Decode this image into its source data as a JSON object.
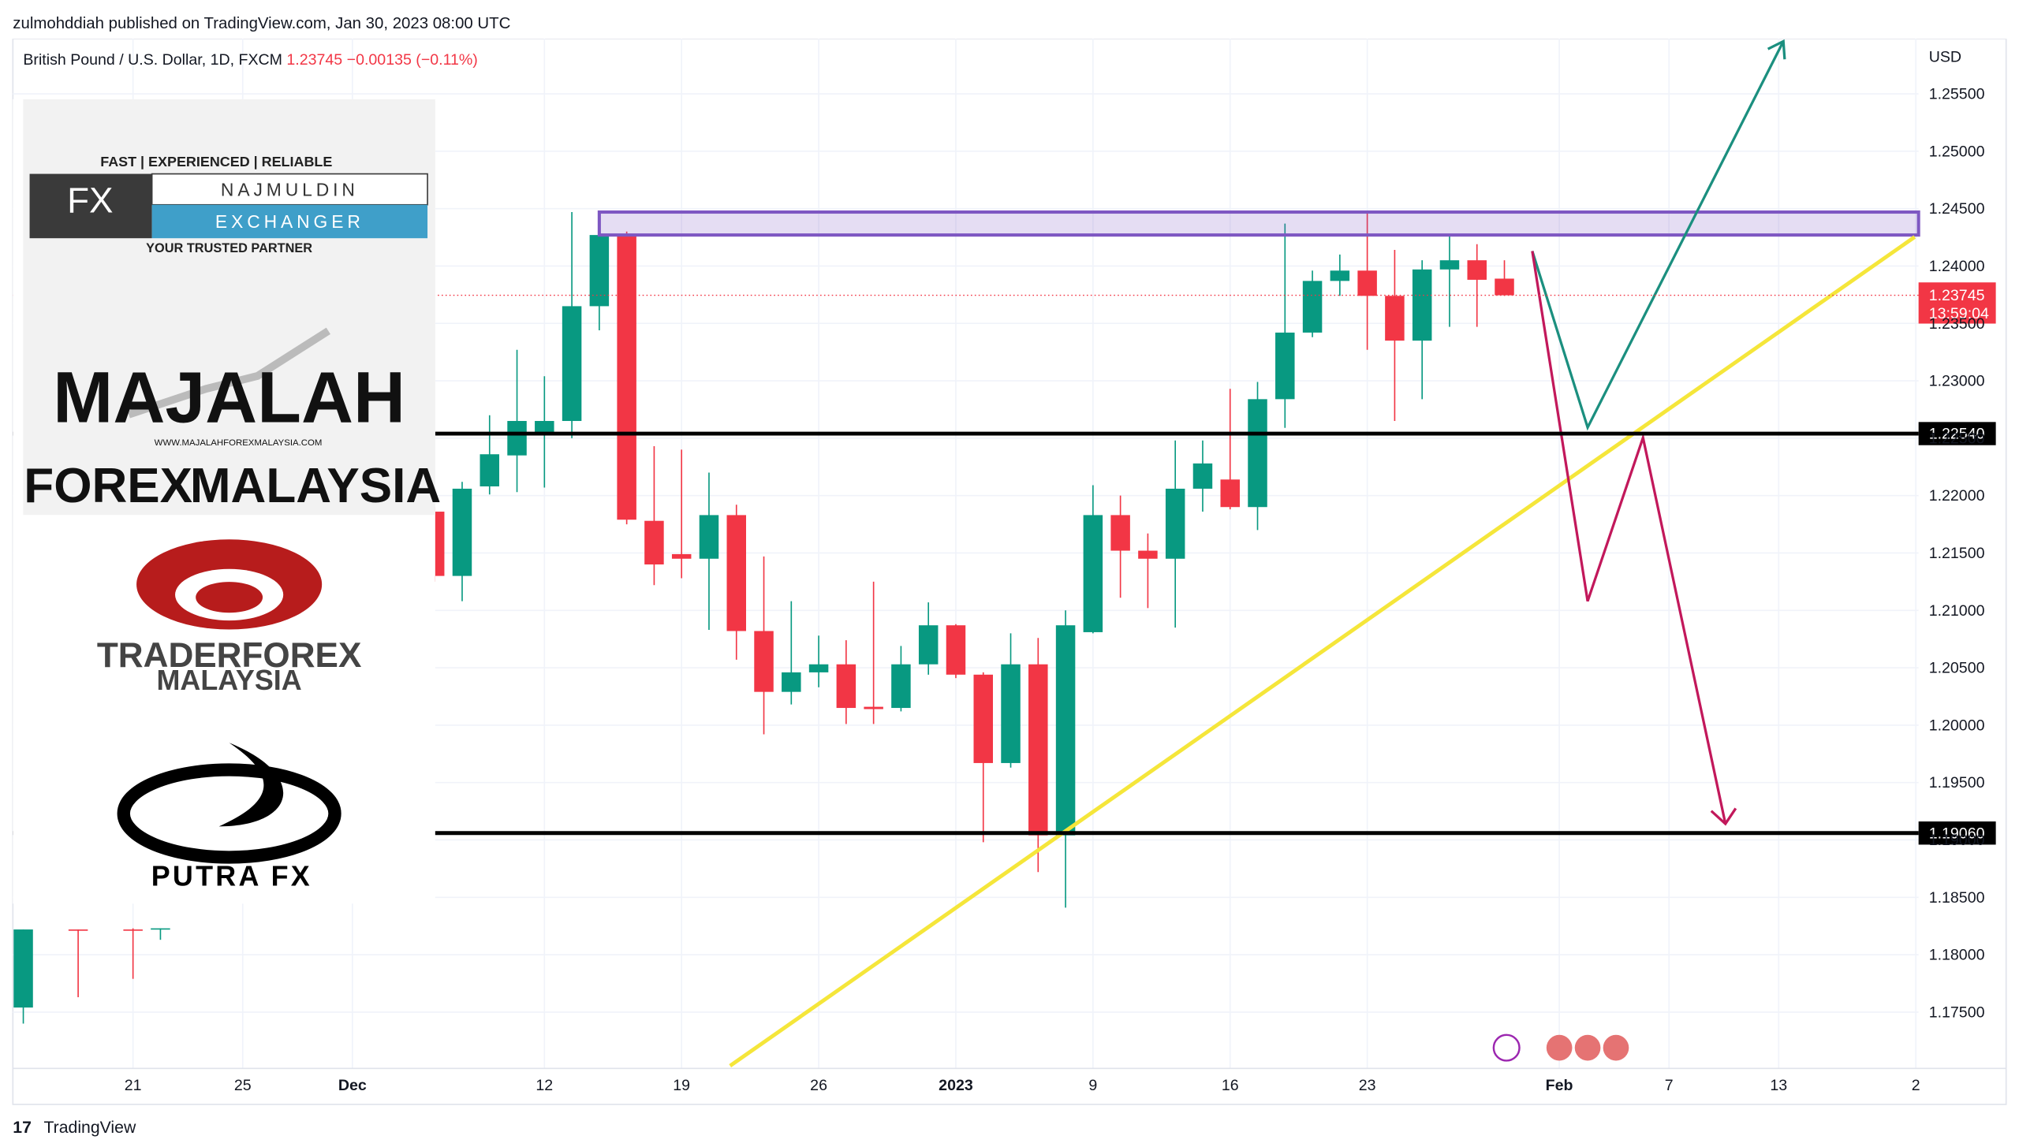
{
  "header": {
    "published": "zulmohddiah published on TradingView.com, Jan 30, 2023 08:00 UTC",
    "brand": "TradingView"
  },
  "logos": {
    "najmuldin": {
      "tagline": "FAST | EXPERIENCED | RELIABLE",
      "fx": "FX",
      "name": "NAJMULDIN",
      "sub": "EXCHANGER",
      "partner": "YOUR TRUSTED PARTNER"
    },
    "majalah": {
      "word1": "MAJALAH",
      "url": "WWW.MAJALAHFOREXMALAYSIA.COM",
      "word2": "FOREX",
      "word3": "MALAYSIA"
    },
    "trader": {
      "line1": "TRADERFOREX",
      "line2": "MALAYSIA"
    },
    "putra": {
      "name": "PUTRA FX"
    }
  },
  "chart_data": {
    "type": "candlestick",
    "title": "British Pound / U.S. Dollar, 1D, FXCM",
    "last_price": 1.23745,
    "change": "−0.00135 (−0.11%)",
    "countdown": "13:59:04",
    "currency": "USD",
    "up_color": "#089981",
    "down_color": "#f23645",
    "candles": {
      "x": [
        0,
        2,
        4,
        5,
        15,
        16,
        17,
        18,
        19,
        20,
        21,
        22,
        23,
        24,
        25,
        26,
        27,
        28,
        29,
        30,
        31,
        32,
        33,
        34,
        35,
        36,
        37,
        38,
        39,
        40,
        41,
        42,
        43,
        44,
        45,
        46,
        47,
        48,
        49,
        50,
        51,
        52,
        53,
        54
      ],
      "open": [
        1.1754,
        1.1822,
        1.1822,
        1.1822,
        1.2186,
        1.213,
        1.2208,
        1.2235,
        1.2254,
        1.2265,
        1.2365,
        1.2427,
        1.2178,
        1.2149,
        1.2145,
        1.2183,
        1.2082,
        1.2029,
        1.2046,
        1.2053,
        1.2016,
        1.2015,
        1.2053,
        1.2087,
        1.2044,
        1.1967,
        1.2053,
        1.1904,
        1.2081,
        1.2183,
        1.2152,
        1.2145,
        1.2206,
        1.2214,
        1.219,
        1.2284,
        1.2342,
        1.2387,
        1.2396,
        1.2374,
        1.2335,
        1.2397,
        1.2405,
        1.2389
      ],
      "high": [
        1.1822,
        1.1822,
        1.1823,
        1.1823,
        1.219,
        1.2212,
        1.227,
        1.2327,
        1.2304,
        1.2447,
        1.2448,
        1.243,
        1.2243,
        1.224,
        1.222,
        1.2192,
        1.2147,
        1.2108,
        1.2078,
        1.2074,
        1.2125,
        1.2069,
        1.2107,
        1.2088,
        1.2046,
        1.208,
        1.2076,
        1.21,
        1.2209,
        1.22,
        1.2167,
        1.2248,
        1.2248,
        1.2293,
        1.2299,
        1.2437,
        1.2396,
        1.241,
        1.2448,
        1.2414,
        1.2405,
        1.2428,
        1.2419,
        1.2405
      ],
      "low": [
        1.174,
        1.1763,
        1.1779,
        1.1813,
        1.2125,
        1.2108,
        1.2201,
        1.2203,
        1.2207,
        1.225,
        1.2344,
        1.2175,
        1.2122,
        1.2128,
        1.2083,
        1.2057,
        1.1992,
        1.2018,
        1.2033,
        1.2001,
        1.2001,
        1.2012,
        1.2044,
        1.2041,
        1.1898,
        1.1963,
        1.1872,
        1.1841,
        1.208,
        1.2111,
        1.2102,
        1.2085,
        1.2186,
        1.2188,
        1.217,
        1.2259,
        1.2338,
        1.2374,
        1.2327,
        1.2265,
        1.2284,
        1.2347,
        1.2347,
        1.2374
      ],
      "close": [
        1.1822,
        1.1821,
        1.1821,
        1.1823,
        1.213,
        1.2206,
        1.2236,
        1.2265,
        1.2265,
        1.2365,
        1.2427,
        1.2179,
        1.214,
        1.2145,
        1.2183,
        1.2082,
        1.2029,
        1.2046,
        1.2053,
        1.2015,
        1.2014,
        1.2053,
        1.2087,
        1.2044,
        1.1967,
        1.2053,
        1.1904,
        1.2087,
        1.2183,
        1.2152,
        1.2145,
        1.2206,
        1.2228,
        1.219,
        1.2284,
        1.2342,
        1.2387,
        1.2396,
        1.2374,
        1.2335,
        1.2397,
        1.2405,
        1.2388,
        1.23745
      ]
    },
    "levels": [
      {
        "value": 1.2254,
        "label": "1.22540"
      },
      {
        "value": 1.1906,
        "label": "1.19060"
      }
    ],
    "zone": {
      "x": [
        21,
        69.1
      ],
      "y": [
        1.2427,
        1.2447
      ],
      "color": "#7e57c2"
    },
    "xlim": [
      -0.38,
      69.1
    ],
    "ylim": [
      1.1701,
      1.2598
    ],
    "xticks": [
      {
        "value": 4,
        "label": "21"
      },
      {
        "value": 8,
        "label": "25"
      },
      {
        "value": 12,
        "label": "Dec"
      },
      {
        "value": 19,
        "label": "12"
      },
      {
        "value": 24,
        "label": "19"
      },
      {
        "value": 29,
        "label": "26"
      },
      {
        "value": 34,
        "label": "2023"
      },
      {
        "value": 39,
        "label": "9"
      },
      {
        "value": 44,
        "label": "16"
      },
      {
        "value": 49,
        "label": "23"
      },
      {
        "value": 56,
        "label": "Feb"
      },
      {
        "value": 60,
        "label": "7"
      },
      {
        "value": 64,
        "label": "13"
      },
      {
        "value": 69,
        "label": "2"
      }
    ],
    "yticks": [
      {
        "value": 1.255,
        "label": "1.25500"
      },
      {
        "value": 1.25,
        "label": "1.25000"
      },
      {
        "value": 1.245,
        "label": "1.24500"
      },
      {
        "value": 1.24,
        "label": "1.24000"
      },
      {
        "value": 1.235,
        "label": "1.23500"
      },
      {
        "value": 1.23,
        "label": "1.23000"
      },
      {
        "value": 1.225,
        "label": "1.22500"
      },
      {
        "value": 1.22,
        "label": "1.22000"
      },
      {
        "value": 1.215,
        "label": "1.21500"
      },
      {
        "value": 1.21,
        "label": "1.21000"
      },
      {
        "value": 1.205,
        "label": "1.20500"
      },
      {
        "value": 1.2,
        "label": "1.20000"
      },
      {
        "value": 1.195,
        "label": "1.19500"
      },
      {
        "value": 1.19,
        "label": "1.19000"
      },
      {
        "value": 1.185,
        "label": "1.18500"
      },
      {
        "value": 1.18,
        "label": "1.18000"
      },
      {
        "value": 1.175,
        "label": "1.17500"
      }
    ],
    "grid": true
  }
}
